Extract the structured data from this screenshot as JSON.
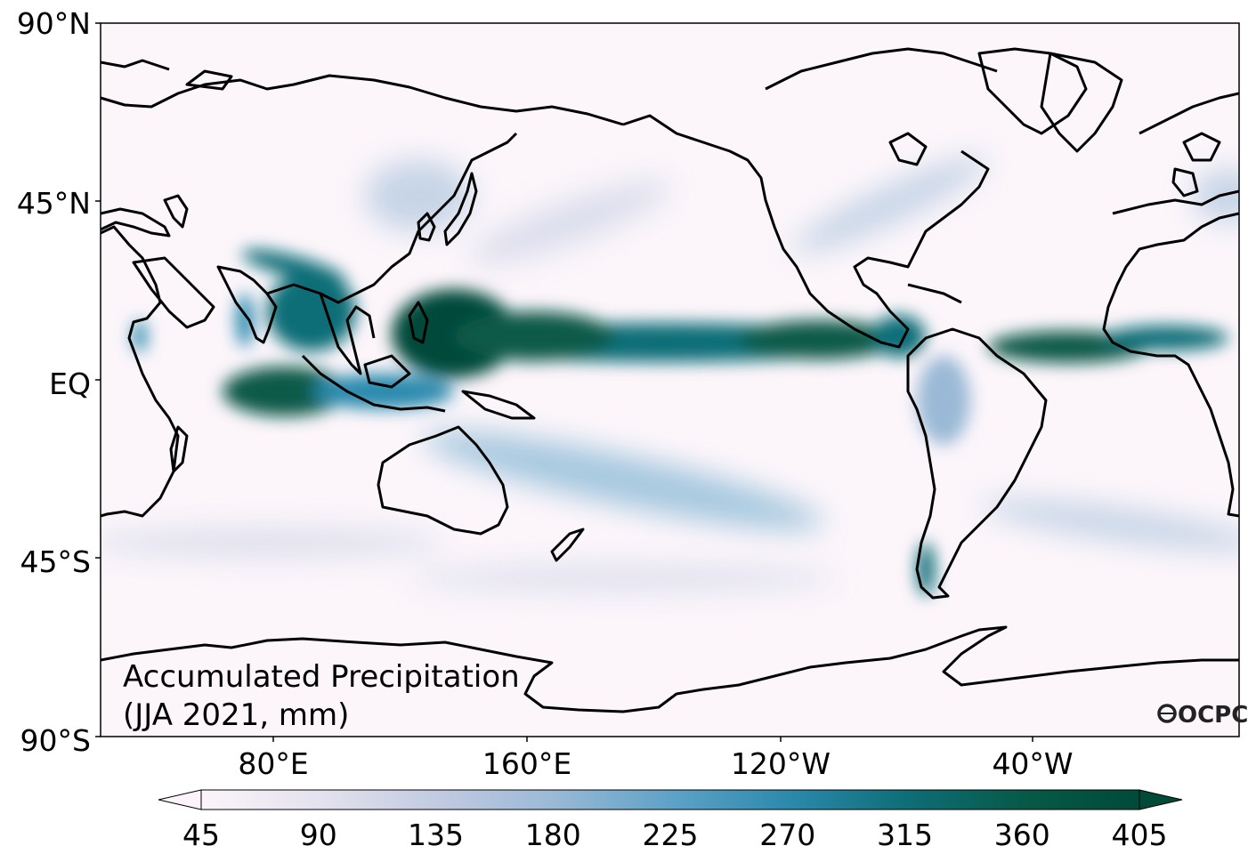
{
  "map": {
    "title_line1": "Accumulated Precipitation",
    "title_line2": "(JJA 2021, mm)",
    "logo": "OCPC",
    "lat_labels": [
      "90°N",
      "45°N",
      "EQ",
      "45°S",
      "90°S"
    ],
    "lon_labels": [
      "80°E",
      "160°E",
      "120°W",
      "40°W"
    ]
  },
  "colorbar": {
    "ticks": [
      "45",
      "90",
      "135",
      "180",
      "225",
      "270",
      "315",
      "360",
      "405"
    ],
    "colors": [
      "#fcf4fa",
      "#e4e2ee",
      "#c2cbe1",
      "#9ab9d6",
      "#5fa2c7",
      "#2c8aad",
      "#0e6e78",
      "#075a48",
      "#004a3a"
    ],
    "extend": "both"
  }
}
